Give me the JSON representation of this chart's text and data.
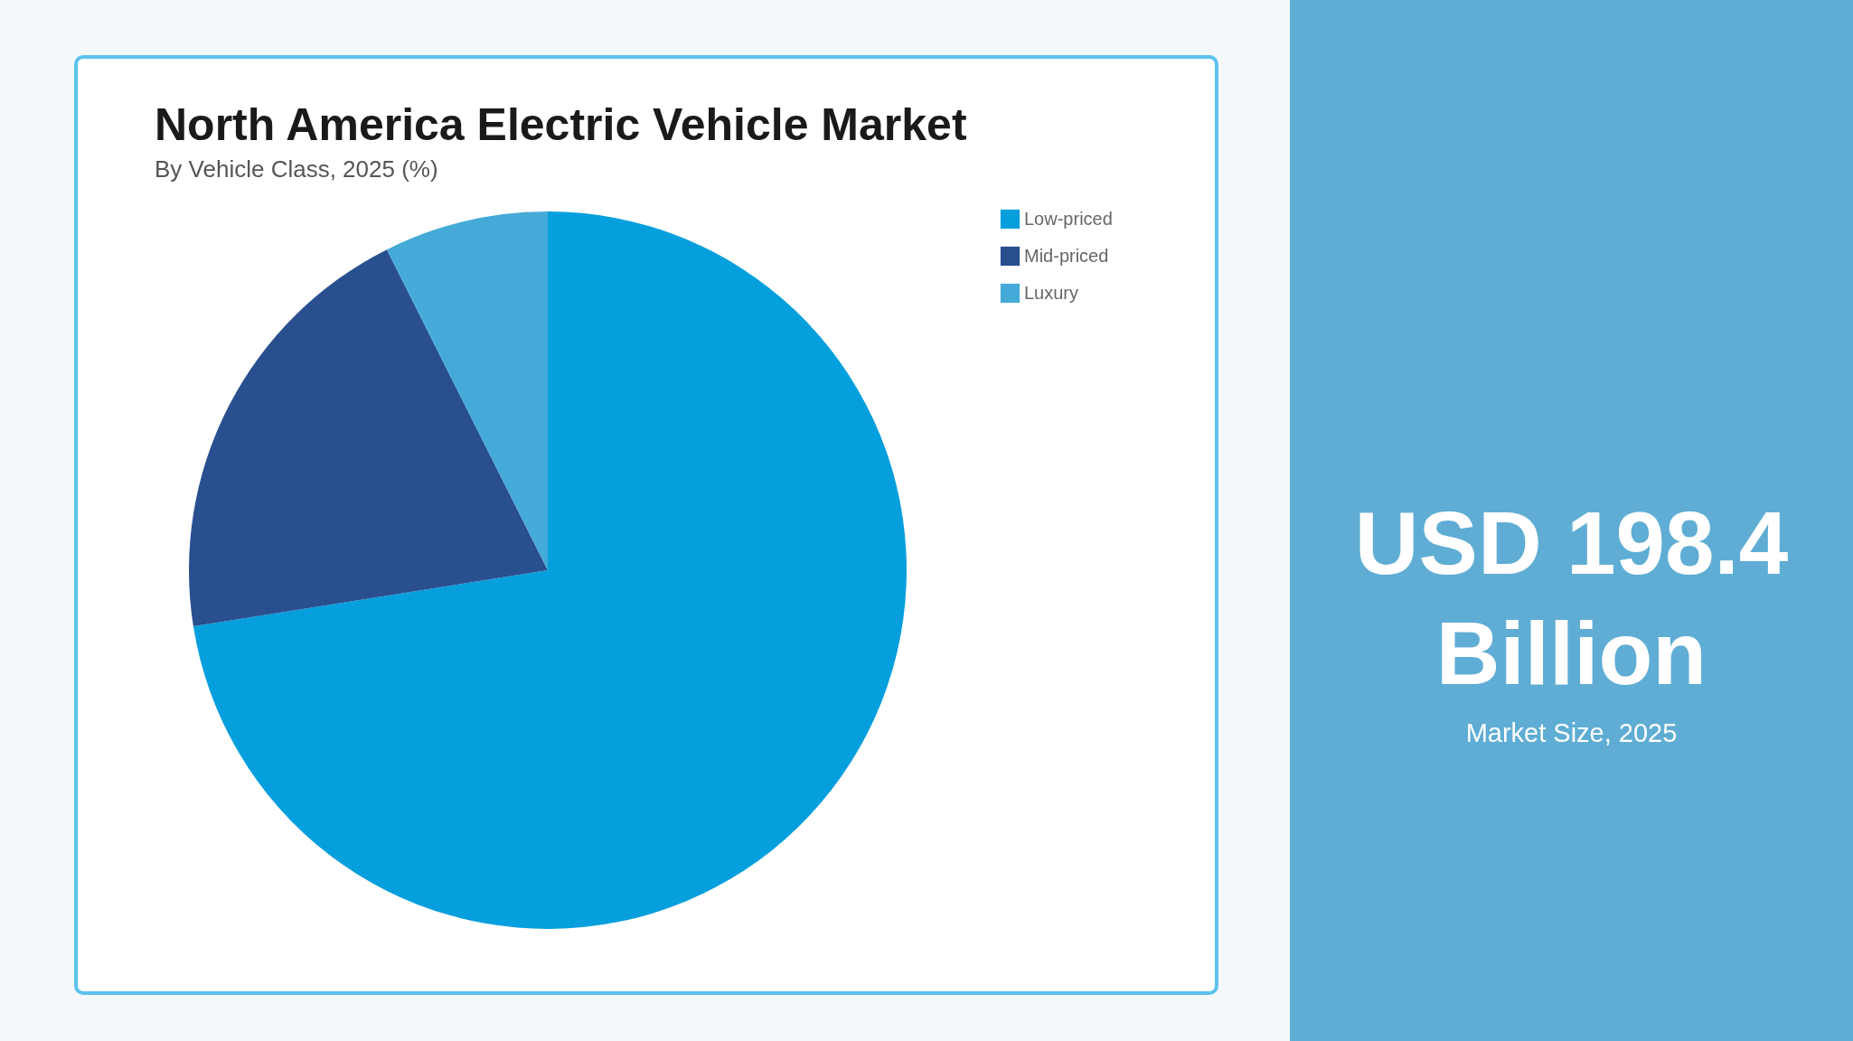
{
  "chart_data": {
    "type": "pie",
    "title": "North America Electric Vehicle Market",
    "subtitle": "By Vehicle Class, 2025 (%)",
    "categories": [
      "Low-priced",
      "Mid-priced",
      "Luxury"
    ],
    "values": [
      72.5,
      20.1,
      7.4
    ],
    "colors": [
      "#069fde",
      "#294f8f",
      "#45aad8"
    ],
    "legend": "right",
    "annotations": [
      "USD 198.4 Billion",
      "Market Size, 2025"
    ]
  }
}
